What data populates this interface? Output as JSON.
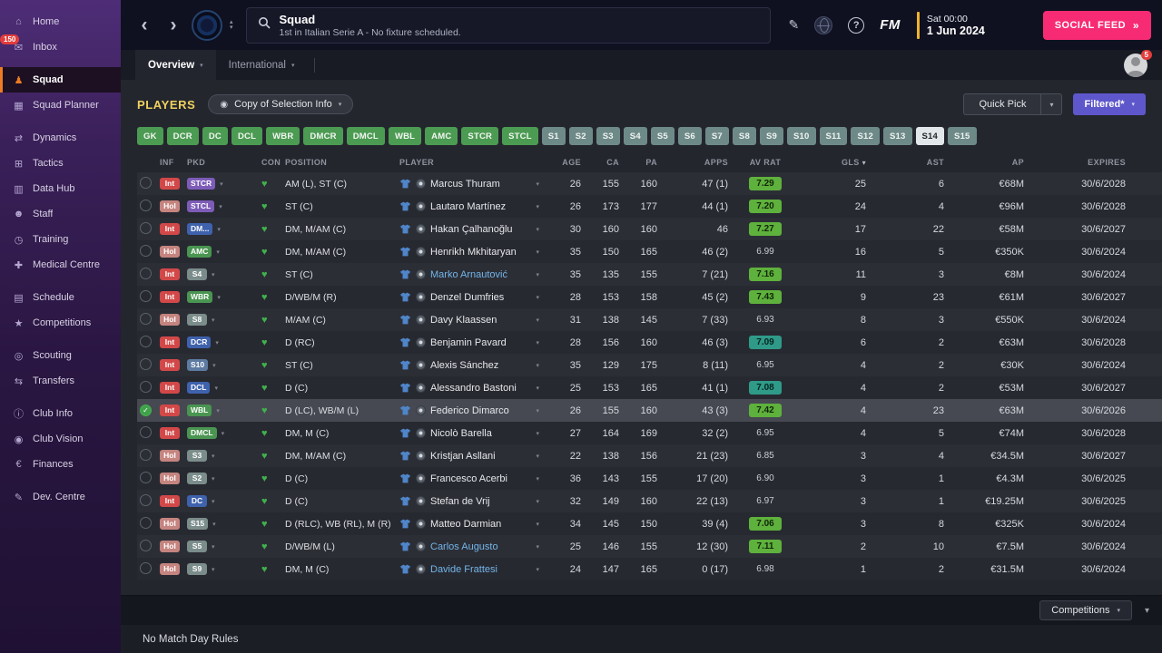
{
  "sidebar": {
    "items": [
      {
        "label": "Home",
        "icon": "home"
      },
      {
        "label": "Inbox",
        "icon": "inbox",
        "badge": "150"
      },
      {
        "label": "Squad",
        "icon": "squad",
        "active": true,
        "gap": true
      },
      {
        "label": "Squad Planner",
        "icon": "squad-planner"
      },
      {
        "label": "Dynamics",
        "icon": "dynamics",
        "gap": true
      },
      {
        "label": "Tactics",
        "icon": "tactics"
      },
      {
        "label": "Data Hub",
        "icon": "data-hub"
      },
      {
        "label": "Staff",
        "icon": "staff"
      },
      {
        "label": "Training",
        "icon": "training"
      },
      {
        "label": "Medical Centre",
        "icon": "medical"
      },
      {
        "label": "Schedule",
        "icon": "schedule",
        "gap": true
      },
      {
        "label": "Competitions",
        "icon": "competitions"
      },
      {
        "label": "Scouting",
        "icon": "scouting",
        "gap": true
      },
      {
        "label": "Transfers",
        "icon": "transfers"
      },
      {
        "label": "Club Info",
        "icon": "club-info",
        "gap": true
      },
      {
        "label": "Club Vision",
        "icon": "club-vision"
      },
      {
        "label": "Finances",
        "icon": "finances"
      },
      {
        "label": "Dev. Centre",
        "icon": "dev-centre",
        "gap": true
      }
    ]
  },
  "topbar": {
    "title": "Squad",
    "subtitle": "1st in Italian Serie A - No fixture scheduled.",
    "date_time": "Sat 00:00",
    "date": "1 Jun 2024",
    "fm_label": "FM",
    "social_feed_label": "SOCIAL FEED"
  },
  "tabs": [
    {
      "label": "Overview",
      "active": true
    },
    {
      "label": "International",
      "active": false
    }
  ],
  "user": {
    "notification_count": "5"
  },
  "players_panel": {
    "title": "PLAYERS",
    "selection_dropdown_label": "Copy of Selection Info",
    "quick_pick_label": "Quick Pick",
    "filtered_label": "Filtered*"
  },
  "colors": {
    "accent_orange": "#ee7b23",
    "social_pink": "#f72b73",
    "filtered_purple": "#5e57cb",
    "position_green": "#4c9b52",
    "sub_gray": "#6e8a88",
    "rating_green": "#5eb13c",
    "rating_teal": "#2f9a88",
    "int_badge_red": "#d24848",
    "hol_badge_salmon": "#c5847f"
  },
  "position_filters": [
    {
      "label": "GK",
      "type": "pos"
    },
    {
      "label": "DCR",
      "type": "pos"
    },
    {
      "label": "DC",
      "type": "pos"
    },
    {
      "label": "DCL",
      "type": "pos"
    },
    {
      "label": "WBR",
      "type": "pos"
    },
    {
      "label": "DMCR",
      "type": "pos"
    },
    {
      "label": "DMCL",
      "type": "pos"
    },
    {
      "label": "WBL",
      "type": "pos"
    },
    {
      "label": "AMC",
      "type": "pos"
    },
    {
      "label": "STCR",
      "type": "pos"
    },
    {
      "label": "STCL",
      "type": "pos"
    },
    {
      "label": "S1",
      "type": "sub"
    },
    {
      "label": "S2",
      "type": "sub"
    },
    {
      "label": "S3",
      "type": "sub"
    },
    {
      "label": "S4",
      "type": "sub"
    },
    {
      "label": "S5",
      "type": "sub"
    },
    {
      "label": "S6",
      "type": "sub"
    },
    {
      "label": "S7",
      "type": "sub"
    },
    {
      "label": "S8",
      "type": "sub"
    },
    {
      "label": "S9",
      "type": "sub"
    },
    {
      "label": "S10",
      "type": "sub"
    },
    {
      "label": "S11",
      "type": "sub"
    },
    {
      "label": "S12",
      "type": "sub"
    },
    {
      "label": "S13",
      "type": "sub"
    },
    {
      "label": "S14",
      "type": "sub",
      "selected": true
    },
    {
      "label": "S15",
      "type": "sub"
    }
  ],
  "table": {
    "columns": [
      {
        "label": "INF",
        "align": "left"
      },
      {
        "label": "PKD",
        "align": "left"
      },
      {
        "label": "CON",
        "align": "left"
      },
      {
        "label": "POSITION",
        "align": "left"
      },
      {
        "label": "PLAYER",
        "align": "left"
      },
      {
        "label": "AGE",
        "align": "right"
      },
      {
        "label": "CA",
        "align": "right"
      },
      {
        "label": "PA",
        "align": "right"
      },
      {
        "label": "APPS",
        "align": "right"
      },
      {
        "label": "AV RAT",
        "align": "center"
      },
      {
        "label": "GLS",
        "align": "right",
        "sorted": "desc"
      },
      {
        "label": "AST",
        "align": "right"
      },
      {
        "label": "AP",
        "align": "right"
      },
      {
        "label": "EXPIRES",
        "align": "right"
      }
    ],
    "rows": [
      {
        "inf": "Int",
        "inf_style": "red",
        "pkd": "STCR",
        "pkd_style": "purple",
        "position": "AM (L), ST (C)",
        "player": "Marcus Thuram",
        "age": "26",
        "ca": "155",
        "pa": "160",
        "apps": "47 (1)",
        "av_rat": "7.29",
        "av_rat_style": "green",
        "gls": "25",
        "ast": "6",
        "ap": "€68M",
        "expires": "30/6/2028"
      },
      {
        "inf": "Hol",
        "inf_style": "hol",
        "pkd": "STCL",
        "pkd_style": "purple",
        "position": "ST (C)",
        "player": "Lautaro Martínez",
        "age": "26",
        "ca": "173",
        "pa": "177",
        "apps": "44 (1)",
        "av_rat": "7.20",
        "av_rat_style": "green",
        "gls": "24",
        "ast": "4",
        "ap": "€96M",
        "expires": "30/6/2028"
      },
      {
        "inf": "Int",
        "inf_style": "red",
        "pkd": "DM...",
        "pkd_style": "blue",
        "position": "DM, M/AM (C)",
        "player": "Hakan Çalhanoğlu",
        "age": "30",
        "ca": "160",
        "pa": "160",
        "apps": "46",
        "av_rat": "7.27",
        "av_rat_style": "green",
        "gls": "17",
        "ast": "22",
        "ap": "€58M",
        "expires": "30/6/2027"
      },
      {
        "inf": "Hol",
        "inf_style": "hol",
        "pkd": "AMC",
        "pkd_style": "green",
        "position": "DM, M/AM (C)",
        "player": "Henrikh Mkhitaryan",
        "age": "35",
        "ca": "150",
        "pa": "165",
        "apps": "46 (2)",
        "av_rat": "6.99",
        "av_rat_style": "plain",
        "gls": "16",
        "ast": "5",
        "ap": "€350K",
        "expires": "30/6/2024"
      },
      {
        "inf": "Int",
        "inf_style": "red",
        "pkd": "S4",
        "pkd_style": "gray",
        "position": "ST (C)",
        "player": "Marko Arnautović",
        "name_style": "listed",
        "age": "35",
        "ca": "135",
        "pa": "155",
        "apps": "7 (21)",
        "av_rat": "7.16",
        "av_rat_style": "green",
        "gls": "11",
        "ast": "3",
        "ap": "€8M",
        "expires": "30/6/2024"
      },
      {
        "inf": "Int",
        "inf_style": "red",
        "pkd": "WBR",
        "pkd_style": "green",
        "position": "D/WB/M (R)",
        "player": "Denzel Dumfries",
        "age": "28",
        "ca": "153",
        "pa": "158",
        "apps": "45 (2)",
        "av_rat": "7.43",
        "av_rat_style": "green",
        "gls": "9",
        "ast": "23",
        "ap": "€61M",
        "expires": "30/6/2027"
      },
      {
        "inf": "Hol",
        "inf_style": "hol",
        "pkd": "S8",
        "pkd_style": "gray",
        "position": "M/AM (C)",
        "player": "Davy Klaassen",
        "age": "31",
        "ca": "138",
        "pa": "145",
        "apps": "7 (33)",
        "av_rat": "6.93",
        "av_rat_style": "plain",
        "gls": "8",
        "ast": "3",
        "ap": "€550K",
        "expires": "30/6/2024"
      },
      {
        "inf": "Int",
        "inf_style": "red",
        "pkd": "DCR",
        "pkd_style": "blue",
        "position": "D (RC)",
        "player": "Benjamin Pavard",
        "age": "28",
        "ca": "156",
        "pa": "160",
        "apps": "46 (3)",
        "av_rat": "7.09",
        "av_rat_style": "teal",
        "gls": "6",
        "ast": "2",
        "ap": "€63M",
        "expires": "30/6/2028"
      },
      {
        "inf": "Int",
        "inf_style": "red",
        "pkd": "S10",
        "pkd_style": "slate",
        "position": "ST (C)",
        "player": "Alexis Sánchez",
        "age": "35",
        "ca": "129",
        "pa": "175",
        "apps": "8 (11)",
        "av_rat": "6.95",
        "av_rat_style": "plain",
        "gls": "4",
        "ast": "2",
        "ap": "€30K",
        "expires": "30/6/2024"
      },
      {
        "inf": "Int",
        "inf_style": "red",
        "pkd": "DCL",
        "pkd_style": "blue",
        "position": "D (C)",
        "player": "Alessandro Bastoni",
        "age": "25",
        "ca": "153",
        "pa": "165",
        "apps": "41 (1)",
        "av_rat": "7.08",
        "av_rat_style": "teal",
        "gls": "4",
        "ast": "2",
        "ap": "€53M",
        "expires": "30/6/2027"
      },
      {
        "inf": "Int",
        "inf_style": "red",
        "pkd": "WBL",
        "pkd_style": "green",
        "position": "D (LC), WB/M (L)",
        "player": "Federico Dimarco",
        "selected": true,
        "age": "26",
        "ca": "155",
        "pa": "160",
        "apps": "43 (3)",
        "av_rat": "7.42",
        "av_rat_style": "green",
        "gls": "4",
        "ast": "23",
        "ap": "€63M",
        "expires": "30/6/2026"
      },
      {
        "inf": "Int",
        "inf_style": "red",
        "pkd": "DMCL",
        "pkd_style": "green",
        "position": "DM, M (C)",
        "player": "Nicolò Barella",
        "age": "27",
        "ca": "164",
        "pa": "169",
        "apps": "32 (2)",
        "av_rat": "6.95",
        "av_rat_style": "plain",
        "gls": "4",
        "ast": "5",
        "ap": "€74M",
        "expires": "30/6/2028"
      },
      {
        "inf": "Hol",
        "inf_style": "hol",
        "pkd": "S3",
        "pkd_style": "gray",
        "position": "DM, M/AM (C)",
        "player": "Kristjan Asllani",
        "age": "22",
        "ca": "138",
        "pa": "156",
        "apps": "21 (23)",
        "av_rat": "6.85",
        "av_rat_style": "plain",
        "gls": "3",
        "ast": "4",
        "ap": "€34.5M",
        "expires": "30/6/2027"
      },
      {
        "inf": "Hol",
        "inf_style": "hol",
        "pkd": "S2",
        "pkd_style": "gray",
        "position": "D (C)",
        "player": "Francesco Acerbi",
        "age": "36",
        "ca": "143",
        "pa": "155",
        "apps": "17 (20)",
        "av_rat": "6.90",
        "av_rat_style": "plain",
        "gls": "3",
        "ast": "1",
        "ap": "€4.3M",
        "expires": "30/6/2025"
      },
      {
        "inf": "Int",
        "inf_style": "red",
        "pkd": "DC",
        "pkd_style": "blue",
        "position": "D (C)",
        "player": "Stefan de Vrij",
        "age": "32",
        "ca": "149",
        "pa": "160",
        "apps": "22 (13)",
        "av_rat": "6.97",
        "av_rat_style": "plain",
        "gls": "3",
        "ast": "1",
        "ap": "€19.25M",
        "expires": "30/6/2025"
      },
      {
        "inf": "Hol",
        "inf_style": "hol",
        "pkd": "S15",
        "pkd_style": "gray",
        "position": "D (RLC), WB (RL), M (R)",
        "player": "Matteo Darmian",
        "age": "34",
        "ca": "145",
        "pa": "150",
        "apps": "39 (4)",
        "av_rat": "7.06",
        "av_rat_style": "green",
        "gls": "3",
        "ast": "8",
        "ap": "€325K",
        "expires": "30/6/2024"
      },
      {
        "inf": "Hol",
        "inf_style": "hol",
        "pkd": "S5",
        "pkd_style": "gray",
        "position": "D/WB/M (L)",
        "player": "Carlos Augusto",
        "name_style": "listed",
        "age": "25",
        "ca": "146",
        "pa": "155",
        "apps": "12 (30)",
        "av_rat": "7.11",
        "av_rat_style": "green",
        "gls": "2",
        "ast": "10",
        "ap": "€7.5M",
        "expires": "30/6/2024"
      },
      {
        "inf": "Hol",
        "inf_style": "hol",
        "pkd": "S9",
        "pkd_style": "gray",
        "position": "DM, M (C)",
        "player": "Davide Frattesi",
        "name_style": "listed",
        "age": "24",
        "ca": "147",
        "pa": "165",
        "apps": "0 (17)",
        "av_rat": "6.98",
        "av_rat_style": "plain",
        "gls": "1",
        "ast": "2",
        "ap": "€31.5M",
        "expires": "30/6/2024"
      }
    ]
  },
  "bottom_panel": {
    "competitions_label": "Competitions",
    "message": "No Match Day Rules"
  }
}
